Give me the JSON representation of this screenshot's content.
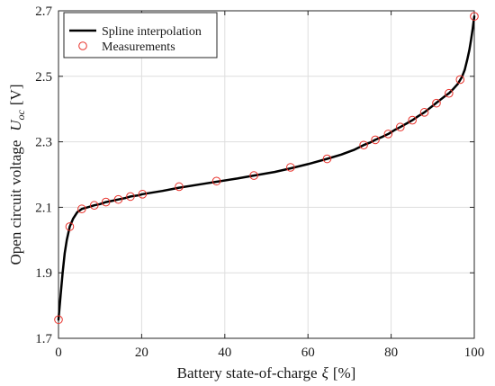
{
  "chart_data": {
    "type": "line",
    "xlabel": "Battery state-of-charge",
    "xlabel_symbol": "ξ",
    "xlabel_unit": "[%]",
    "ylabel": "Open circuit voltage",
    "ylabel_symbol": "U",
    "ylabel_subscript": "oc",
    "ylabel_unit": "[V]",
    "xlim": [
      0,
      100
    ],
    "ylim": [
      1.7,
      2.7
    ],
    "xticks": [
      0,
      20,
      40,
      60,
      80,
      100
    ],
    "xtick_labels": [
      "0",
      "20",
      "40",
      "60",
      "80",
      "100"
    ],
    "yticks": [
      1.7,
      1.9,
      2.1,
      2.3,
      2.5,
      2.7
    ],
    "ytick_labels": [
      "1.7",
      "1.9",
      "2.1",
      "2.3",
      "2.5",
      "2.7"
    ],
    "grid": true,
    "legend_position": "top-left",
    "series": [
      {
        "name": "Spline interpolation",
        "style": "line",
        "color": "#000000",
        "x": [
          0,
          0.5,
          1,
          1.5,
          2,
          2.7,
          3.5,
          4.5,
          5.6,
          7,
          8.6,
          10,
          11.4,
          13,
          14.4,
          16,
          17.3,
          19,
          20.2,
          25,
          29,
          35,
          38,
          43,
          47,
          52,
          55.8,
          60,
          64.6,
          68,
          71,
          73.4,
          75,
          76.2,
          78,
          79.3,
          81,
          82.2,
          84,
          85.1,
          86.5,
          88,
          89,
          90,
          91,
          92,
          93,
          93.9,
          95,
          96,
          97,
          97.7,
          98.3,
          98.8,
          99.2,
          99.6,
          100
        ],
        "y": [
          1.757,
          1.83,
          1.9,
          1.96,
          2.0,
          2.041,
          2.065,
          2.085,
          2.095,
          2.1,
          2.106,
          2.11,
          2.116,
          2.12,
          2.124,
          2.128,
          2.133,
          2.136,
          2.14,
          2.15,
          2.16,
          2.172,
          2.178,
          2.188,
          2.197,
          2.208,
          2.219,
          2.232,
          2.248,
          2.261,
          2.275,
          2.29,
          2.298,
          2.306,
          2.316,
          2.324,
          2.337,
          2.345,
          2.358,
          2.366,
          2.378,
          2.39,
          2.4,
          2.41,
          2.42,
          2.43,
          2.44,
          2.448,
          2.462,
          2.476,
          2.497,
          2.52,
          2.55,
          2.58,
          2.61,
          2.645,
          2.683
        ]
      },
      {
        "name": "Measurements",
        "style": "markers",
        "marker": "circle",
        "color": "#e8312a",
        "x": [
          0,
          2.7,
          5.6,
          8.6,
          11.4,
          14.4,
          17.3,
          20.2,
          29,
          38,
          47,
          55.8,
          64.6,
          73.4,
          76.2,
          79.3,
          82.2,
          85.1,
          88,
          90.9,
          93.9,
          96.6,
          100
        ],
        "y": [
          1.757,
          2.041,
          2.095,
          2.106,
          2.116,
          2.124,
          2.133,
          2.14,
          2.163,
          2.18,
          2.197,
          2.222,
          2.248,
          2.29,
          2.306,
          2.324,
          2.345,
          2.366,
          2.39,
          2.418,
          2.448,
          2.49,
          2.683
        ]
      }
    ]
  }
}
